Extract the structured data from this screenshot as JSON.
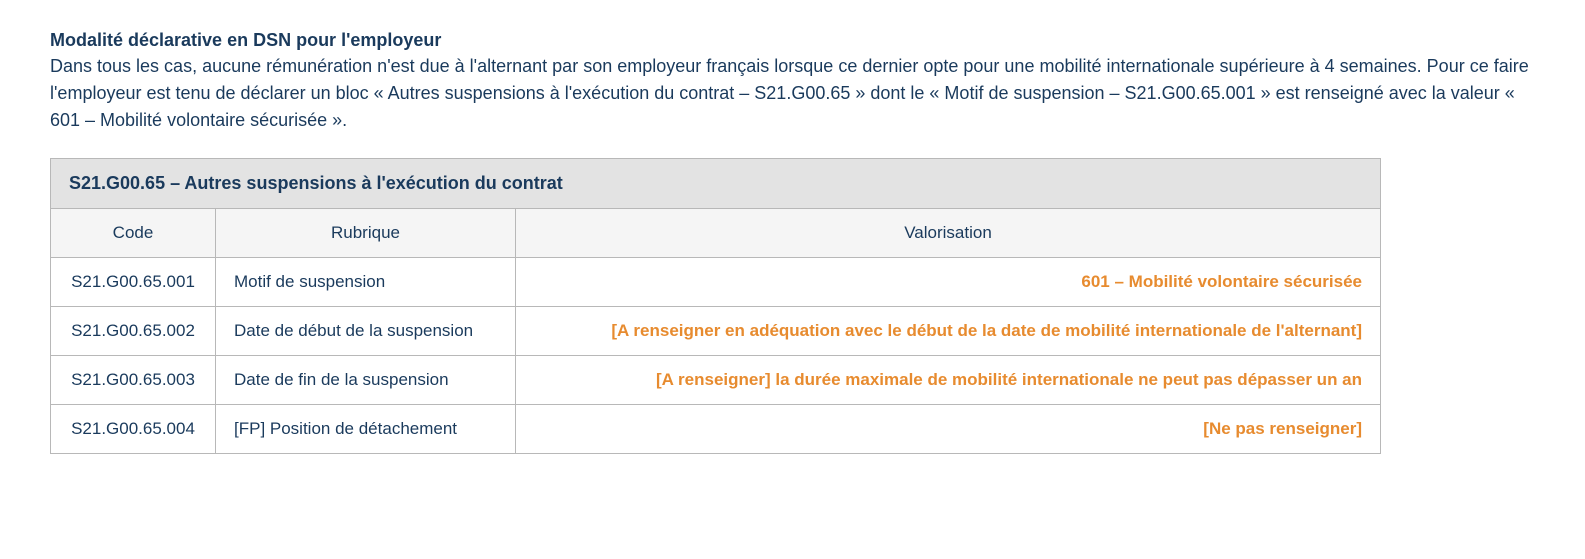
{
  "heading": "Modalité déclarative en DSN pour l'employeur",
  "paragraph": "Dans tous les cas, aucune rémunération n'est due à l'alternant par son employeur français lorsque ce dernier opte pour une mobilité internationale supérieure à 4 semaines. Pour ce faire l'employeur est tenu de déclarer un bloc « Autres suspensions à l'exécution du contrat – S21.G00.65 » dont le « Motif de suspension – S21.G00.65.001 » est renseigné avec la valeur « 601 – Mobilité volontaire sécurisée ».",
  "table": {
    "title": "S21.G00.65 – Autres suspensions à l'exécution du contrat",
    "columns": {
      "code": "Code",
      "rubrique": "Rubrique",
      "valorisation": "Valorisation"
    },
    "rows": [
      {
        "code": "S21.G00.65.001",
        "rubrique": "Motif de suspension",
        "valorisation": "601 – Mobilité volontaire sécurisée"
      },
      {
        "code": "S21.G00.65.002",
        "rubrique": "Date de début de la suspension",
        "valorisation": "[A renseigner en adéquation avec le début de la date de mobilité internationale de l'alternant]"
      },
      {
        "code": "S21.G00.65.003",
        "rubrique": "Date de fin de la suspension",
        "valorisation": "[A renseigner] la durée maximale de mobilité internationale ne peut pas dépasser un an"
      },
      {
        "code": "S21.G00.65.004",
        "rubrique": "[FP] Position de détachement",
        "valorisation": "[Ne pas renseigner]"
      }
    ]
  },
  "colors": {
    "text": "#1a3a5c",
    "highlight": "#e78b2f",
    "header_bg": "#e3e3e3",
    "subheader_bg": "#f5f5f5",
    "border": "#b8b8b8"
  }
}
